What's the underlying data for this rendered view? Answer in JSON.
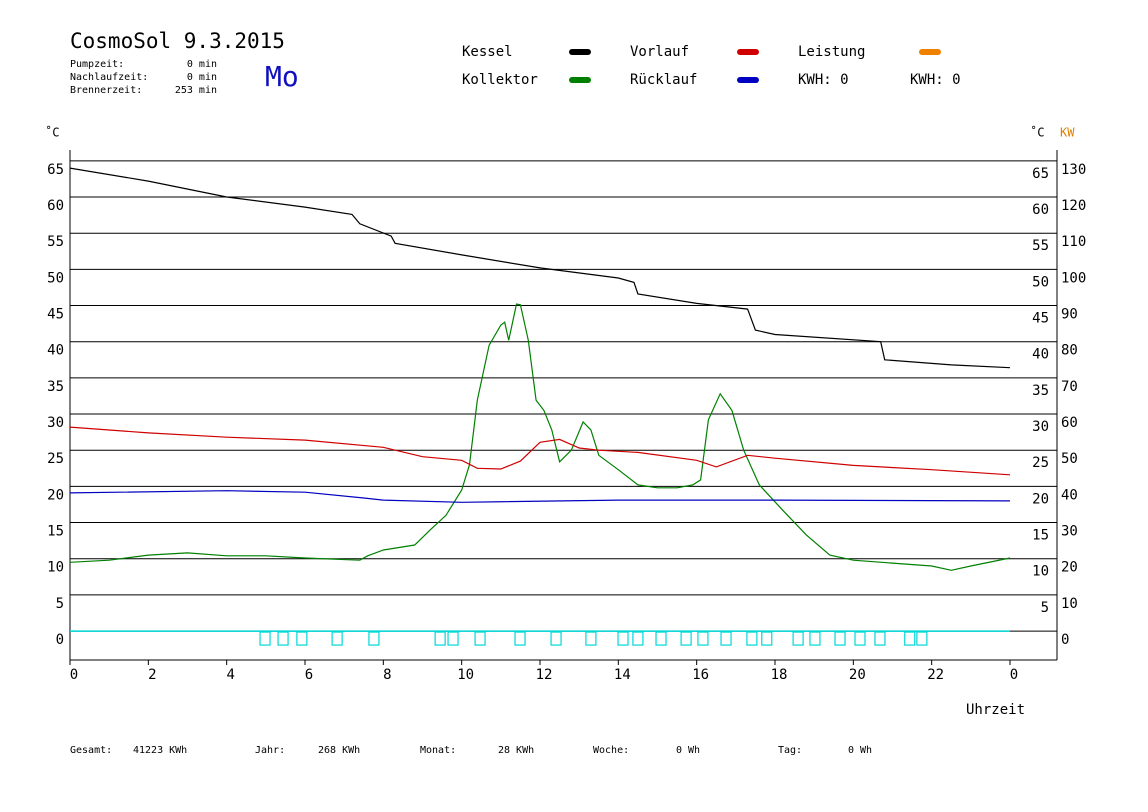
{
  "chart_data": {
    "type": "line",
    "title": "CosmoSol 9.3.2015",
    "weekday": "Mo",
    "info": [
      [
        "Pumpzeit:",
        "0 min"
      ],
      [
        "Nachlaufzeit:",
        "0 min"
      ],
      [
        "Brennerzeit:",
        "253 min"
      ]
    ],
    "kwh_labels": [
      {
        "text": "KWH: 0",
        "color": "#e08000"
      },
      {
        "text": "KWH: 0",
        "color": "#800080"
      }
    ],
    "ylabel": "˚C",
    "y_right_label": "˚C",
    "y2label": "KW",
    "xlabel": "Uhrzeit",
    "xlim": [
      0,
      24
    ],
    "xticks": [
      0,
      2,
      4,
      6,
      8,
      10,
      12,
      14,
      16,
      18,
      20,
      22,
      {
        "value": 24,
        "label": "0"
      }
    ],
    "ylim": [
      -4,
      66.5
    ],
    "yticks": [
      0,
      5,
      10,
      15,
      20,
      25,
      30,
      35,
      40,
      45,
      50,
      55,
      60,
      65
    ],
    "yticks_right": [
      5,
      10,
      15,
      20,
      25,
      30,
      35,
      40,
      45,
      50,
      55,
      60,
      65
    ],
    "y2lim": [
      -8,
      133
    ],
    "y2ticks": [
      0,
      10,
      20,
      30,
      40,
      50,
      60,
      70,
      80,
      90,
      100,
      110,
      120,
      130
    ],
    "grid": true,
    "series": [
      {
        "name": "Kessel",
        "color": "#000000",
        "x": [
          0,
          2,
          4,
          6,
          7.2,
          7.4,
          8.2,
          8.3,
          10,
          12,
          14,
          14.4,
          14.5,
          16,
          17.3,
          17.5,
          18,
          20.7,
          20.8,
          22.5,
          24
        ],
        "values": [
          64,
          62.2,
          60,
          58.6,
          57.6,
          56.3,
          54.6,
          53.6,
          52,
          50.2,
          48.8,
          48.2,
          46.6,
          45.3,
          44.5,
          41.6,
          41,
          40,
          37.5,
          36.8,
          36.4
        ]
      },
      {
        "name": "Kollektor",
        "color": "#008000",
        "x": [
          0,
          1,
          2,
          3,
          4,
          5,
          6,
          7.4,
          7.6,
          8,
          8.8,
          9.2,
          9.6,
          10,
          10.2,
          10.4,
          10.7,
          11,
          11.1,
          11.2,
          11.4,
          11.5,
          11.7,
          11.9,
          12.1,
          12.3,
          12.5,
          12.8,
          13.1,
          13.3,
          13.5,
          14,
          14.5,
          15,
          15.5,
          15.9,
          16.1,
          16.3,
          16.6,
          16.9,
          17.2,
          17.6,
          18.2,
          18.8,
          19.4,
          20,
          21,
          22,
          22.5,
          23,
          24
        ],
        "values": [
          9.5,
          9.8,
          10.5,
          10.8,
          10.4,
          10.4,
          10.1,
          9.8,
          10.4,
          11.2,
          11.9,
          14,
          16,
          19.5,
          23,
          31.9,
          39.5,
          42.3,
          42.7,
          40.2,
          45.2,
          45.1,
          40.2,
          31.9,
          30.5,
          27.8,
          23.4,
          25,
          28.9,
          27.8,
          24.3,
          22.3,
          20.2,
          19.8,
          19.8,
          20.2,
          20.9,
          29.2,
          32.8,
          30.5,
          25,
          20.2,
          16.7,
          13.3,
          10.5,
          9.8,
          9.4,
          9,
          8.4,
          9,
          10.1
        ]
      },
      {
        "name": "Vorlauf",
        "color": "#d00000",
        "x": [
          0,
          2,
          4,
          6,
          8,
          9,
          10,
          10.4,
          11,
          11.5,
          12,
          12.5,
          13,
          13.5,
          14.5,
          16,
          16.5,
          17.3,
          18,
          20,
          22,
          24
        ],
        "values": [
          28.2,
          27.4,
          26.8,
          26.4,
          25.4,
          24.1,
          23.6,
          22.5,
          22.4,
          23.5,
          26.1,
          26.5,
          25.3,
          25,
          24.7,
          23.6,
          22.7,
          24.3,
          23.9,
          22.9,
          22.3,
          21.6
        ]
      },
      {
        "name": "Rücklauf",
        "color": "#0000c0",
        "x": [
          0,
          4,
          6,
          7.5,
          8,
          10,
          14,
          18,
          24
        ],
        "values": [
          19.1,
          19.4,
          19.2,
          18.4,
          18.1,
          17.8,
          18.1,
          18.1,
          18
        ]
      },
      {
        "name": "Leistung",
        "color": "#f08000",
        "axis": "y2"
      }
    ],
    "pulses": {
      "color": "#00d8d8",
      "value": 0,
      "x": [
        4.98,
        5.44,
        5.92,
        6.82,
        7.76,
        9.45,
        9.78,
        10.47,
        11.49,
        12.41,
        13.3,
        14.12,
        14.5,
        15.09,
        15.73,
        16.16,
        16.75,
        17.41,
        17.79,
        18.59,
        19.02,
        19.66,
        20.17,
        20.68,
        21.44,
        21.75
      ]
    },
    "footer": [
      [
        "Gesamt:",
        "41223 KWh"
      ],
      [
        "Jahr:",
        "268 KWh"
      ],
      [
        "Monat:",
        "28 KWh"
      ],
      [
        "Woche:",
        "0 Wh"
      ],
      [
        "Tag:",
        "0 Wh"
      ]
    ]
  }
}
